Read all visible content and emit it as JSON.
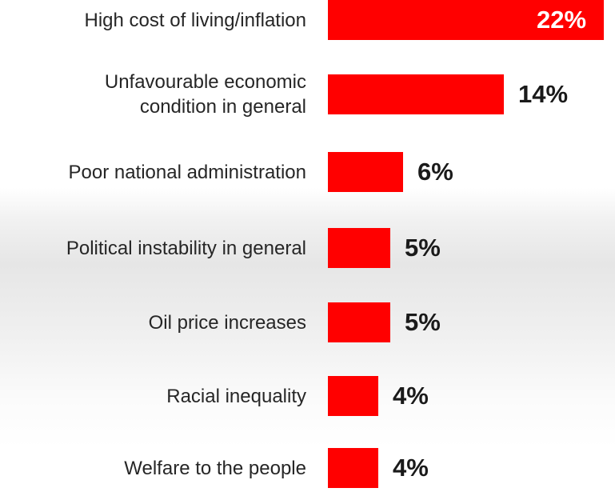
{
  "chart_data": {
    "type": "bar",
    "orientation": "horizontal",
    "categories": [
      "High cost of living/inflation",
      "Unfavourable economic condition in general",
      "Poor national administration",
      "Political instability in general",
      "Oil price increases",
      "Racial inequality",
      "Welfare to the people"
    ],
    "category_lines": [
      [
        "High cost of living/inflation"
      ],
      [
        "Unfavourable economic",
        "condition in general"
      ],
      [
        "Poor national administration"
      ],
      [
        "Political instability in general"
      ],
      [
        "Oil price increases"
      ],
      [
        "Racial inequality"
      ],
      [
        "Welfare to the people"
      ]
    ],
    "values": [
      22,
      14,
      6,
      5,
      5,
      4,
      4
    ],
    "value_labels": [
      "22%",
      "14%",
      "6%",
      "5%",
      "5%",
      "4%",
      "4%"
    ],
    "bar_color": "#ff0000",
    "xlim": [
      0,
      22
    ],
    "grid": false
  }
}
